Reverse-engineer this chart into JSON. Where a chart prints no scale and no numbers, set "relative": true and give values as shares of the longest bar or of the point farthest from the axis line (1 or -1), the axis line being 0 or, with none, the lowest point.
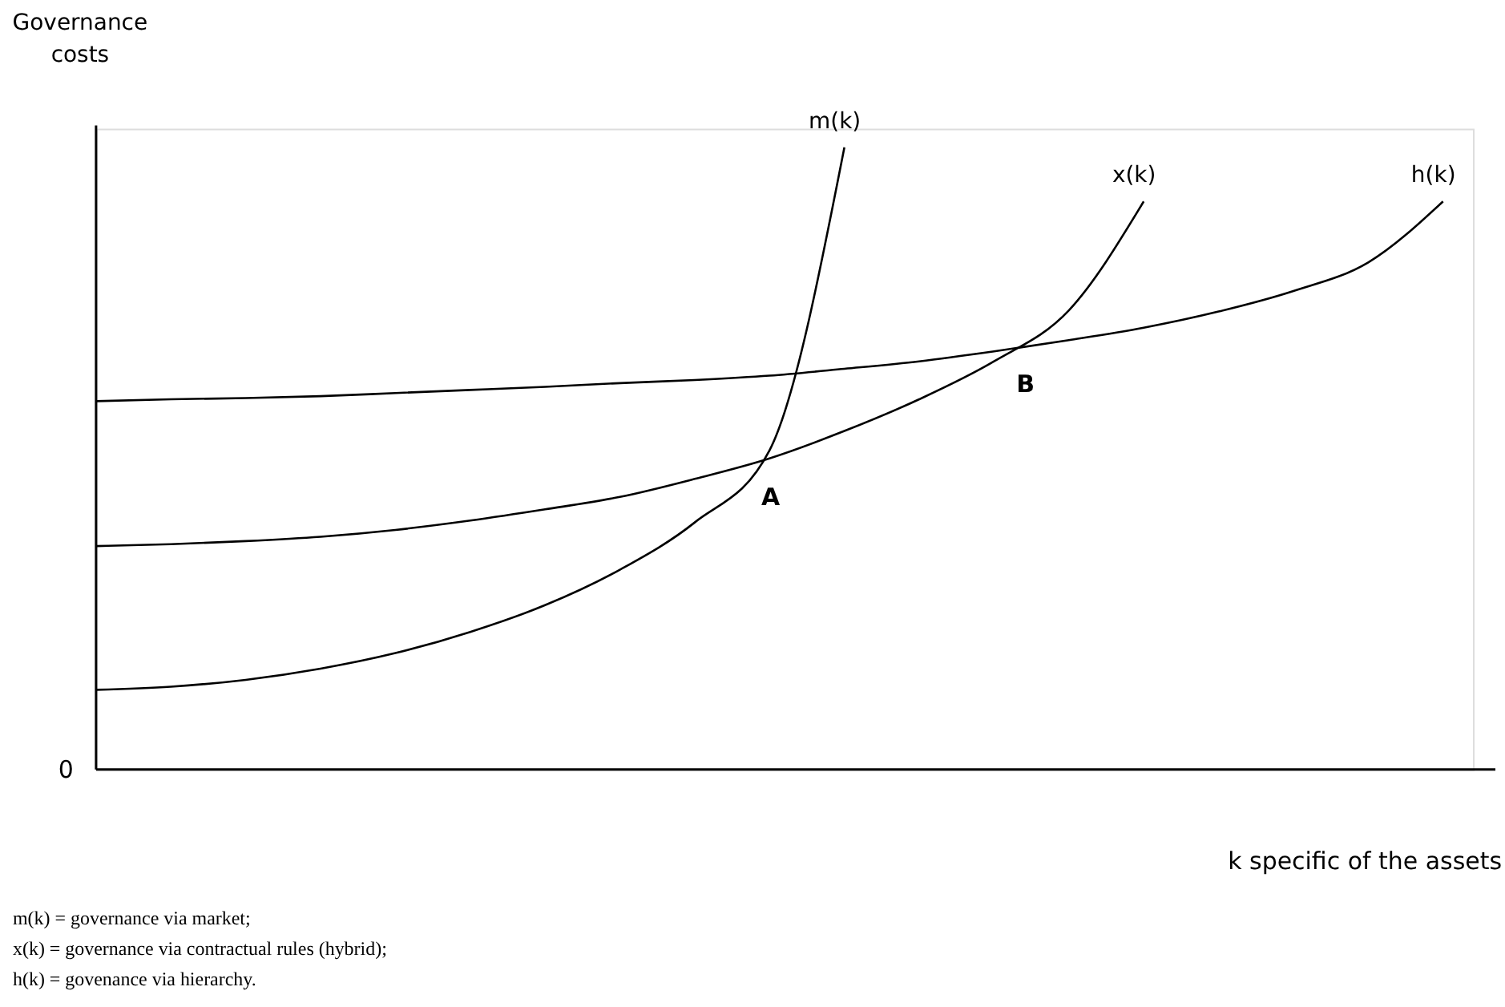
{
  "chart_data": {
    "type": "line",
    "relative": true,
    "xlabel": "k specific of the assets",
    "ylabel": "Governance costs",
    "categories": [
      null,
      null,
      null,
      null,
      null,
      null,
      null,
      null,
      null,
      null,
      null,
      null,
      null,
      null,
      null,
      null,
      null,
      null,
      null
    ],
    "series": [
      {
        "name": "m(k)",
        "color": "#000000",
        "values": [
          0.128,
          0.133,
          0.144,
          0.162,
          0.187,
          0.221,
          0.264,
          0.321,
          0.397,
          0.513,
          1.0,
          null,
          null,
          null,
          null,
          null,
          null,
          null,
          null
        ]
      },
      {
        "name": "x(k)",
        "color": "#000000",
        "values": [
          0.359,
          0.362,
          0.367,
          0.374,
          0.385,
          0.4,
          0.418,
          0.438,
          0.467,
          0.5,
          0.544,
          0.595,
          0.656,
          0.738,
          0.913,
          null,
          null,
          null,
          null
        ]
      },
      {
        "name": "h(k)",
        "color": "#000000",
        "values": [
          0.592,
          0.595,
          0.597,
          0.6,
          0.605,
          0.61,
          0.615,
          0.621,
          0.626,
          0.633,
          0.644,
          0.656,
          0.672,
          0.69,
          0.71,
          0.736,
          0.769,
          0.815,
          0.913
        ]
      }
    ],
    "annotations": [
      "A",
      "B",
      "0",
      "m(k) = governance via market;",
      "x(k) = governance via contractual rules (hybrid);",
      "h(k) =  govenance via hierarchy."
    ],
    "grid": false,
    "legend": false,
    "line_style": "solid",
    "marker": "none"
  }
}
